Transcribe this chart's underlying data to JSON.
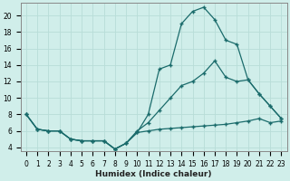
{
  "xlabel": "Humidex (Indice chaleur)",
  "bg_color": "#d0eeea",
  "line_color": "#1a6b6b",
  "grid_color": "#b8ddd8",
  "xlim_min": -0.5,
  "xlim_max": 23.5,
  "ylim_min": 3.5,
  "ylim_max": 21.5,
  "xticks": [
    0,
    1,
    2,
    3,
    4,
    5,
    6,
    7,
    8,
    9,
    10,
    11,
    12,
    13,
    14,
    15,
    16,
    17,
    18,
    19,
    20,
    21,
    22,
    23
  ],
  "yticks": [
    4,
    6,
    8,
    10,
    12,
    14,
    16,
    18,
    20
  ],
  "line1_x": [
    0,
    1,
    2,
    3,
    4,
    5,
    6,
    7,
    8,
    9,
    10,
    11,
    12,
    13,
    14,
    15,
    16,
    17,
    18,
    19,
    20,
    21,
    22,
    23
  ],
  "line1_y": [
    8.0,
    6.2,
    6.0,
    6.0,
    5.0,
    4.8,
    4.8,
    4.8,
    3.8,
    4.5,
    5.8,
    8.0,
    13.5,
    14.0,
    19.0,
    20.5,
    21.0,
    19.5,
    17.0,
    16.5,
    12.2,
    10.5,
    9.0,
    7.5
  ],
  "line2_x": [
    0,
    1,
    2,
    3,
    4,
    5,
    6,
    7,
    8,
    9,
    10,
    11,
    12,
    13,
    14,
    15,
    16,
    17,
    18,
    19,
    20,
    21,
    22,
    23
  ],
  "line2_y": [
    8.0,
    6.2,
    6.0,
    6.0,
    5.0,
    4.8,
    4.8,
    4.8,
    3.8,
    4.5,
    6.0,
    7.0,
    8.5,
    10.0,
    11.5,
    12.0,
    13.0,
    14.5,
    12.5,
    12.0,
    12.2,
    10.5,
    9.0,
    7.5
  ],
  "line3_x": [
    0,
    1,
    2,
    3,
    4,
    5,
    6,
    7,
    8,
    9,
    10,
    11,
    12,
    13,
    14,
    15,
    16,
    17,
    18,
    19,
    20,
    21,
    22,
    23
  ],
  "line3_y": [
    8.0,
    6.2,
    6.0,
    6.0,
    5.0,
    4.8,
    4.8,
    4.8,
    3.8,
    4.5,
    5.8,
    6.0,
    6.2,
    6.3,
    6.4,
    6.5,
    6.6,
    6.7,
    6.8,
    7.0,
    7.2,
    7.5,
    7.0,
    7.2
  ],
  "tick_fontsize": 5.5,
  "xlabel_fontsize": 6.5
}
